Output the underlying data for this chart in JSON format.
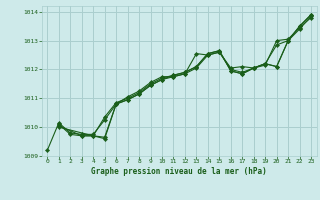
{
  "title": "Graphe pression niveau de la mer (hPa)",
  "bg_color": "#ceeaea",
  "grid_color": "#aacece",
  "line_color": "#1a5e1a",
  "xlim": [
    -0.5,
    23.5
  ],
  "ylim": [
    1009,
    1014.2
  ],
  "yticks": [
    1009,
    1010,
    1011,
    1012,
    1013,
    1014
  ],
  "xticks": [
    0,
    1,
    2,
    3,
    4,
    5,
    6,
    7,
    8,
    9,
    10,
    11,
    12,
    13,
    14,
    15,
    16,
    17,
    18,
    19,
    20,
    21,
    22,
    23
  ],
  "series": [
    {
      "x": [
        0,
        1,
        2,
        3,
        4,
        5,
        6,
        7,
        8,
        9,
        10,
        11,
        12,
        13,
        14,
        15,
        16,
        17,
        18,
        19,
        20,
        21,
        22,
        23
      ],
      "y": [
        1009.2,
        1010.15,
        1009.8,
        1009.75,
        1009.75,
        1010.25,
        1010.8,
        1011.05,
        1011.25,
        1011.55,
        1011.75,
        1011.75,
        1011.85,
        1012.55,
        1012.5,
        1012.6,
        1012.05,
        1012.1,
        1012.05,
        1012.15,
        1013.0,
        1013.05,
        1013.45,
        1013.8
      ]
    },
    {
      "x": [
        1,
        2,
        3,
        4,
        5,
        6,
        7,
        8,
        9,
        10,
        11,
        12,
        13,
        14,
        15,
        16,
        17,
        18,
        19,
        20,
        21,
        22,
        23
      ],
      "y": [
        1010.1,
        1009.75,
        1009.7,
        1009.7,
        1009.65,
        1010.8,
        1010.95,
        1011.15,
        1011.45,
        1011.65,
        1011.75,
        1011.85,
        1012.05,
        1012.5,
        1012.6,
        1012.0,
        1011.9,
        1012.05,
        1012.2,
        1012.85,
        1013.0,
        1013.4,
        1013.85
      ]
    },
    {
      "x": [
        1,
        3,
        4,
        5,
        6,
        7,
        8,
        9,
        10,
        11,
        12,
        13,
        14,
        15,
        16,
        17,
        18,
        19,
        20,
        21,
        22,
        23
      ],
      "y": [
        1010.05,
        1009.7,
        1009.7,
        1010.35,
        1010.85,
        1011.0,
        1011.2,
        1011.5,
        1011.7,
        1011.8,
        1011.9,
        1012.1,
        1012.55,
        1012.65,
        1011.95,
        1011.85,
        1012.05,
        1012.2,
        1012.1,
        1013.0,
        1013.5,
        1013.9
      ]
    },
    {
      "x": [
        1,
        5,
        6,
        7,
        8,
        9,
        10,
        11,
        12,
        13,
        14,
        15,
        16,
        17,
        18,
        19,
        20,
        21,
        22,
        23
      ],
      "y": [
        1010.0,
        1009.6,
        1010.8,
        1010.95,
        1011.15,
        1011.45,
        1011.65,
        1011.8,
        1011.9,
        1012.1,
        1012.55,
        1012.65,
        1011.95,
        1011.85,
        1012.05,
        1012.2,
        1012.1,
        1013.0,
        1013.5,
        1013.9
      ]
    }
  ]
}
